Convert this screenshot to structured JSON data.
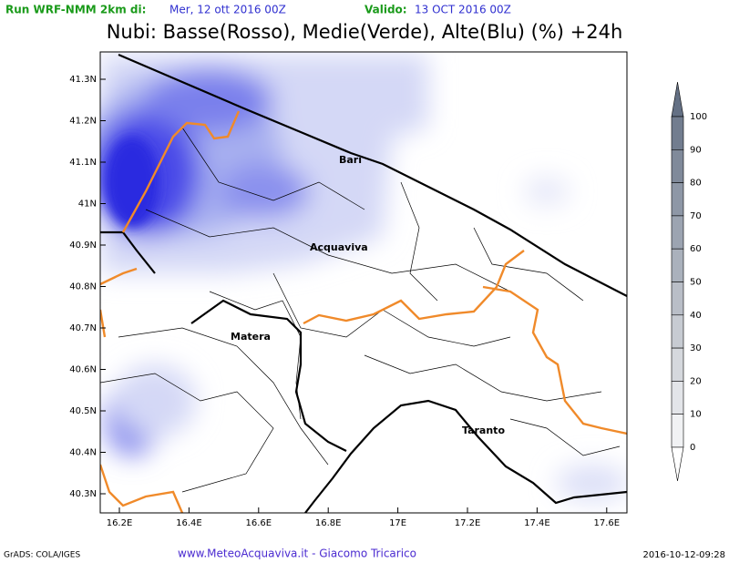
{
  "header": {
    "run_label": "Run WRF-NMM 2km di:",
    "run_date": "Mer, 12 ott 2016 00Z",
    "valid_label": "Valido:",
    "valid_date": "13 OCT 2016 00Z",
    "title": "Nubi: Basse(Rosso), Medie(Verde), Alte(Blu) (%) +24h"
  },
  "map": {
    "lat_labels": [
      "41.3N",
      "41.2N",
      "41.1N",
      "41N",
      "40.9N",
      "40.8N",
      "40.7N",
      "40.6N",
      "40.5N",
      "40.4N",
      "40.3N"
    ],
    "lon_labels": [
      "16.2E",
      "16.4E",
      "16.6E",
      "16.8E",
      "17E",
      "17.2E",
      "17.4E",
      "17.6E"
    ],
    "places": [
      "Bari",
      "Acquaviva",
      "Matera",
      "Taranto"
    ]
  },
  "colorbar": {
    "labels": [
      100,
      90,
      80,
      70,
      60,
      50,
      40,
      30,
      20,
      10,
      0
    ]
  },
  "footer": {
    "left": "GrADS: COLA/IGES",
    "center": "www.MeteoAcquaviva.it - Giacomo Tricarico",
    "right": "2016-10-12-09:28"
  }
}
